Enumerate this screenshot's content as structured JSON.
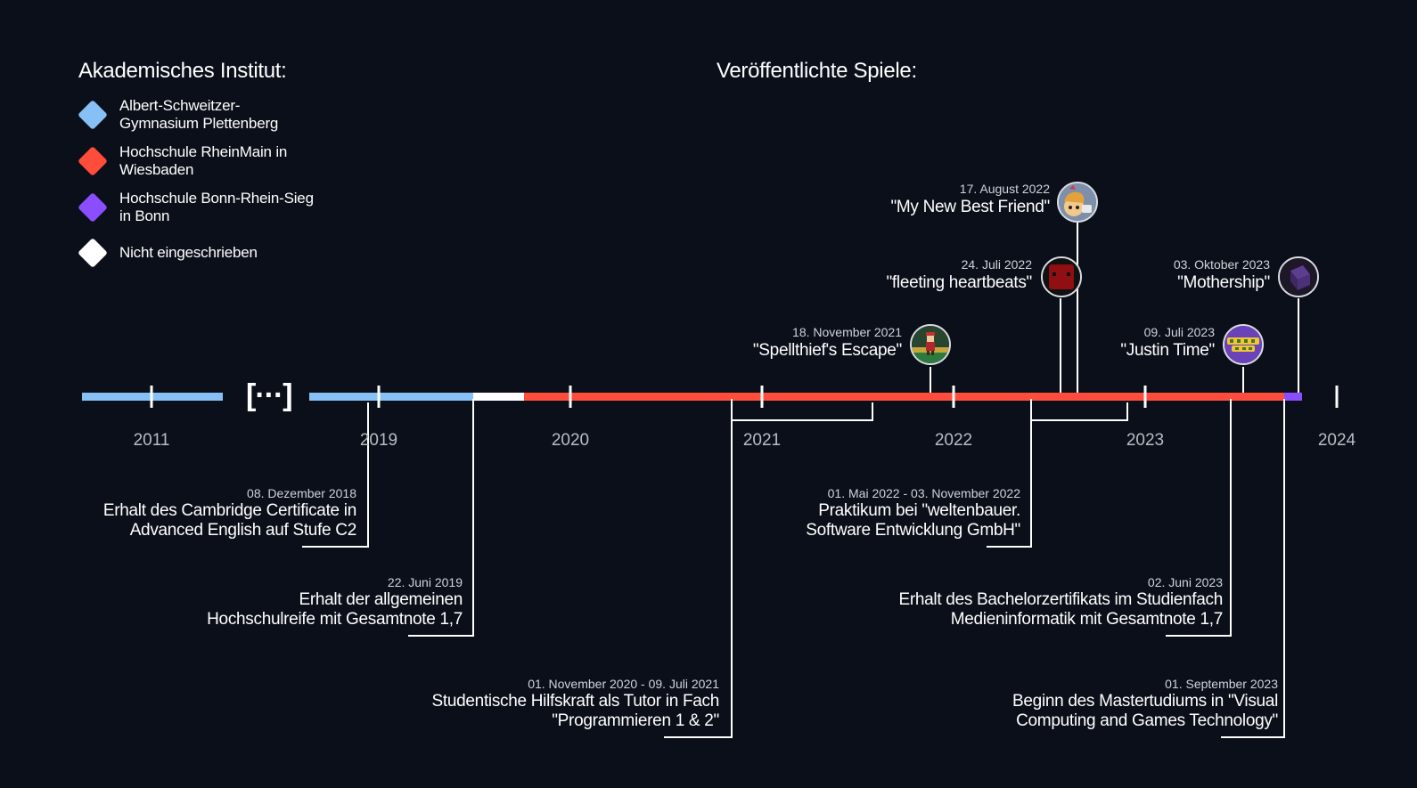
{
  "institute_heading": "Akademisches Institut:",
  "games_heading": "Veröffentlichte Spiele:",
  "legend": [
    {
      "label_line1": "Albert-Schweitzer-",
      "label_line2": "Gymnasium Plettenberg",
      "color": "#87c0f5"
    },
    {
      "label_line1": "Hochschule RheinMain in",
      "label_line2": "Wiesbaden",
      "color": "#ff4c3b"
    },
    {
      "label_line1": "Hochschule Bonn-Rhein-Sieg",
      "label_line2": "in Bonn",
      "color": "#8a4dff"
    },
    {
      "label_line1": "Nicht eingeschrieben",
      "label_line2": "",
      "color": "#ffffff"
    }
  ],
  "gap_marker": "[···]",
  "years": [
    "2011",
    "2019",
    "2020",
    "2021",
    "2022",
    "2023",
    "2024"
  ],
  "events": [
    {
      "date": "08. Dezember 2018",
      "line1": "Erhalt des Cambridge Certificate in",
      "line2": "Advanced English auf Stufe C2"
    },
    {
      "date": "22. Juni 2019",
      "line1": "Erhalt der allgemeinen",
      "line2": "Hochschulreife mit Gesamtnote 1,7"
    },
    {
      "date": "01. November 2020 - 09. Juli 2021",
      "line1": "Studentische Hilfskraft als Tutor in Fach",
      "line2": "\"Programmieren 1 & 2\""
    },
    {
      "date": "01. Mai 2022 - 03. November 2022",
      "line1": "Praktikum bei \"weltenbauer.",
      "line2": "Software Entwicklung GmbH\""
    },
    {
      "date": "02. Juni 2023",
      "line1": "Erhalt des Bachelorzertifikats im Studienfach",
      "line2": "Medieninformatik mit Gesamtnote 1,7"
    },
    {
      "date": "01. September 2023",
      "line1": "Beginn des Mastertudiums in \"Visual",
      "line2": "Computing and Games Technology\""
    }
  ],
  "games": [
    {
      "date": "17. August 2022",
      "title": "\"My New Best Friend\"",
      "icon": "cartoon-face-icon"
    },
    {
      "date": "24. Juli 2022",
      "title": "\"fleeting heartbeats\"",
      "icon": "red-cube-icon"
    },
    {
      "date": "18. November 2021",
      "title": "\"Spellthief's Escape\"",
      "icon": "pixel-character-icon"
    },
    {
      "date": "03. Oktober 2023",
      "title": "\"Mothership\"",
      "icon": "purple-cube-icon"
    },
    {
      "date": "09. Juli 2023",
      "title": "\"Justin Time\"",
      "icon": "justin-time-logo-icon"
    }
  ]
}
